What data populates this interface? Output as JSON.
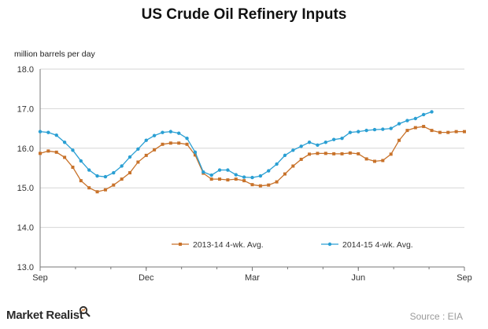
{
  "title": "US Crude Oil Refinery Inputs",
  "footer": {
    "brand": "Market Realist",
    "source": "Source : EIA"
  },
  "colors": {
    "series_2013_14": "#c8722a",
    "series_2014_15": "#2a9fd3",
    "axis": "#777777",
    "grid": "#d6d6d6"
  },
  "chart_data": {
    "type": "line",
    "ylabel": "million barrels per day",
    "ylim": [
      13.0,
      18.0
    ],
    "yticks": [
      "18.0",
      "17.0",
      "16.0",
      "15.0",
      "14.0",
      "13.0"
    ],
    "xlim": [
      0,
      52
    ],
    "xticks": [
      {
        "label": "Sep",
        "x": 0
      },
      {
        "label": "Dec",
        "x": 13
      },
      {
        "label": "Mar",
        "x": 26
      },
      {
        "label": "Jun",
        "x": 39
      },
      {
        "label": "Sep",
        "x": 52
      }
    ],
    "grid": true,
    "legend": "bottom",
    "series": [
      {
        "name": "2013-14  4-wk. Avg.",
        "values": [
          15.87,
          15.93,
          15.9,
          15.77,
          15.52,
          15.18,
          15.0,
          14.9,
          14.95,
          15.07,
          15.22,
          15.38,
          15.65,
          15.82,
          15.96,
          16.1,
          16.13,
          16.13,
          16.1,
          15.83,
          15.37,
          15.22,
          15.22,
          15.2,
          15.22,
          15.18,
          15.08,
          15.05,
          15.07,
          15.15,
          15.35,
          15.55,
          15.72,
          15.85,
          15.87,
          15.87,
          15.86,
          15.86,
          15.88,
          15.86,
          15.73,
          15.67,
          15.69,
          15.85,
          16.2,
          16.45,
          16.52,
          16.55,
          16.45,
          16.4,
          16.4,
          16.42,
          16.42
        ]
      },
      {
        "name": "2014-15  4-wk. Avg.",
        "values": [
          16.42,
          16.4,
          16.33,
          16.15,
          15.95,
          15.68,
          15.45,
          15.3,
          15.28,
          15.38,
          15.55,
          15.78,
          15.98,
          16.2,
          16.32,
          16.4,
          16.42,
          16.38,
          16.25,
          15.9,
          15.4,
          15.32,
          15.45,
          15.45,
          15.33,
          15.27,
          15.26,
          15.3,
          15.43,
          15.6,
          15.82,
          15.95,
          16.05,
          16.15,
          16.08,
          16.15,
          16.22,
          16.25,
          16.4,
          16.42,
          16.45,
          16.47,
          16.48,
          16.5,
          16.62,
          16.7,
          16.75,
          16.85,
          16.92
        ]
      }
    ]
  }
}
